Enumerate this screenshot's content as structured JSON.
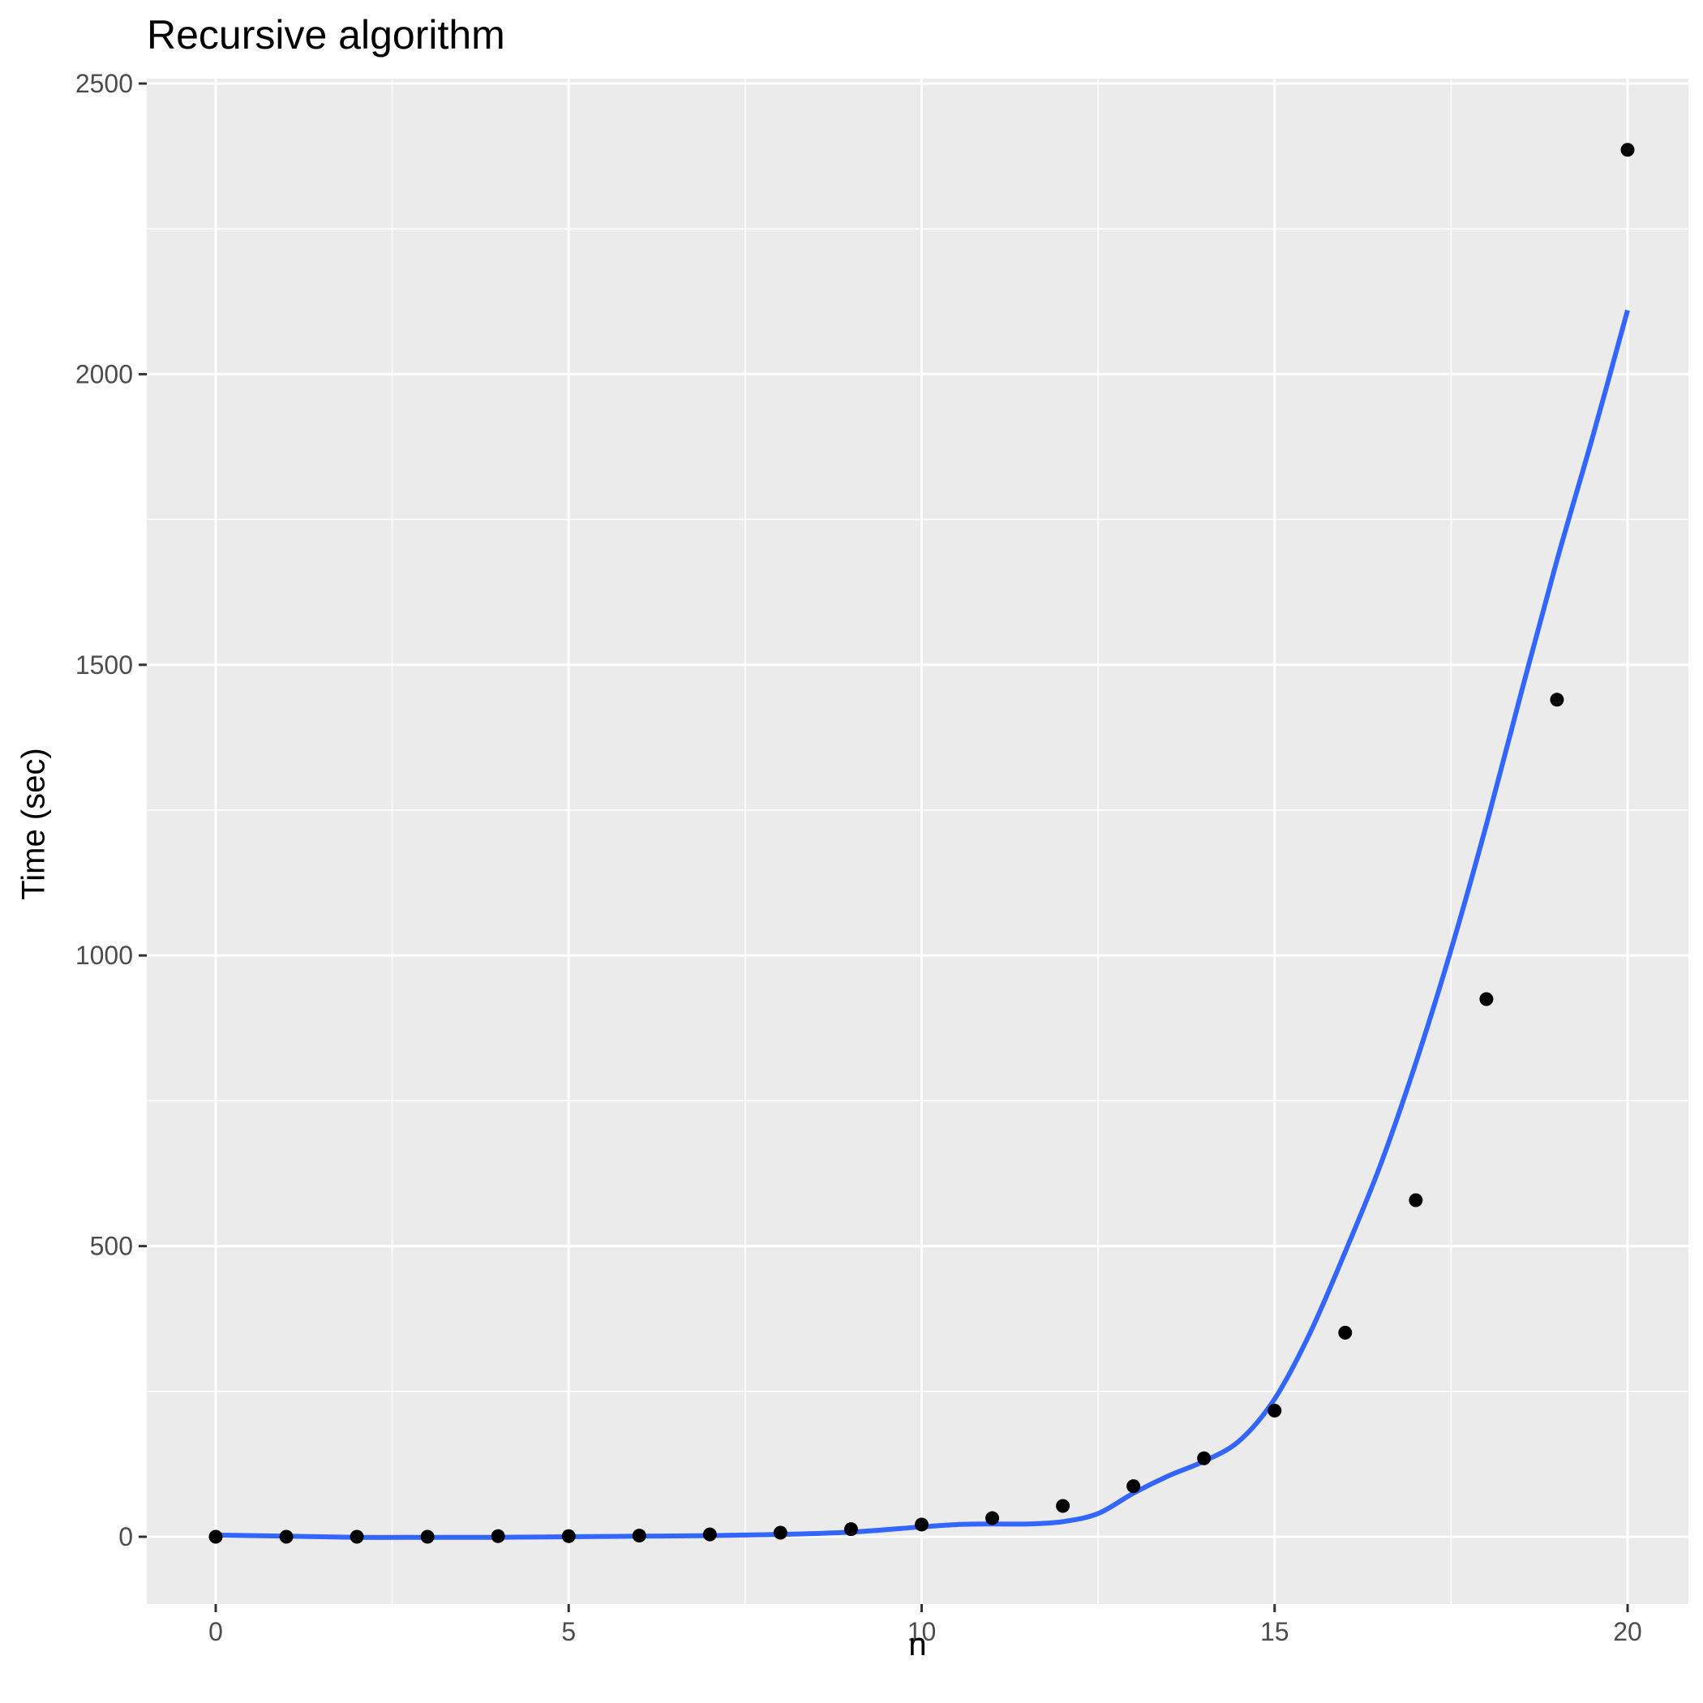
{
  "chart_data": {
    "type": "scatter",
    "title": "Recursive algorithm",
    "xlabel": "n",
    "ylabel": "Time (sec)",
    "xlim": [
      -1,
      21
    ],
    "ylim": [
      -125,
      2500
    ],
    "x_ticks": [
      0,
      5,
      10,
      15,
      20
    ],
    "y_ticks": [
      0,
      500,
      1000,
      1500,
      2000,
      2500
    ],
    "grid": true,
    "series": [
      {
        "mark": "point",
        "color": "#000000",
        "x": [
          0,
          1,
          2,
          3,
          4,
          5,
          6,
          7,
          8,
          9,
          10,
          11,
          12,
          13,
          14,
          15,
          16,
          17,
          18,
          19,
          20
        ],
        "y": [
          0,
          0,
          0,
          0,
          1,
          1,
          2,
          4,
          7,
          13,
          21,
          32,
          53,
          87,
          135,
          217,
          351,
          579,
          925,
          1440,
          2386
        ]
      },
      {
        "mark": "smooth",
        "color": "#3366ff",
        "x": [
          0,
          1,
          2,
          3,
          4,
          5,
          6,
          7,
          8,
          9,
          10,
          10.5,
          11,
          11.5,
          12,
          12.5,
          13,
          13.5,
          14,
          14.5,
          15,
          15.5,
          16,
          16.5,
          17,
          17.5,
          18,
          18.5,
          19,
          19.5,
          20
        ],
        "y": [
          3,
          1,
          -1,
          -1,
          -1,
          0,
          1,
          2,
          4,
          8,
          17,
          21,
          22,
          22,
          26,
          40,
          75,
          105,
          130,
          165,
          237,
          350,
          490,
          640,
          815,
          1010,
          1225,
          1455,
          1680,
          1890,
          2110
        ]
      }
    ]
  }
}
